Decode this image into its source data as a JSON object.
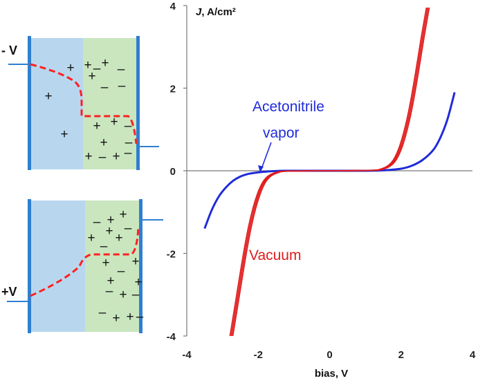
{
  "chart_data": {
    "type": "line",
    "title": "",
    "xlabel": "bias, V",
    "ylabel": "J, A/cm²",
    "xlim": [
      -4,
      4
    ],
    "ylim": [
      -4,
      4
    ],
    "x_ticks": [
      "-4",
      "-2",
      "0",
      "2",
      "4"
    ],
    "y_ticks": [
      "4",
      "2",
      "0",
      "-2",
      "-4"
    ],
    "grid": false,
    "series": [
      {
        "name": "Acetonitrile vapor",
        "color": "#1f2bd9",
        "x": [
          -3.5,
          -3.3,
          -3.1,
          -2.9,
          -2.7,
          -2.5,
          -2.3,
          -2.1,
          -1.9,
          -1.6,
          -1.3,
          -1.0,
          0,
          1.0,
          1.5,
          2.0,
          2.3,
          2.6,
          2.9,
          3.1,
          3.3,
          3.5
        ],
        "y": [
          -1.4,
          -0.95,
          -0.62,
          -0.4,
          -0.24,
          -0.14,
          -0.08,
          -0.05,
          -0.03,
          -0.01,
          0,
          0,
          0,
          0,
          0.01,
          0.05,
          0.12,
          0.26,
          0.5,
          0.8,
          1.25,
          1.9
        ]
      },
      {
        "name": "Vacuum",
        "color": "#e01b1b",
        "x": [
          -2.75,
          -2.6,
          -2.45,
          -2.3,
          -2.15,
          -2.0,
          -1.85,
          -1.7,
          -1.5,
          -1.2,
          0,
          1.2,
          1.5,
          1.7,
          1.85,
          2.0,
          2.15,
          2.3,
          2.45,
          2.6,
          2.75
        ],
        "y": [
          -4.0,
          -3.2,
          -2.4,
          -1.65,
          -1.05,
          -0.6,
          -0.3,
          -0.14,
          -0.05,
          -0.01,
          0,
          0.01,
          0.05,
          0.14,
          0.3,
          0.6,
          1.05,
          1.65,
          2.4,
          3.2,
          3.95
        ]
      }
    ],
    "annotations": [
      {
        "text": "Acetonitrile vapor",
        "lines": [
          "Acetonitrile",
          "vapor"
        ],
        "color": "#1f2bd9",
        "arrow_to": [
          -2.0,
          -0.03
        ]
      },
      {
        "text": "Vacuum",
        "color": "#e01b1b"
      }
    ]
  },
  "diagrams": {
    "top": {
      "bias_label": "- V"
    },
    "bottom": {
      "bias_label": "+V"
    },
    "colors": {
      "left_region": "#b8d7ee",
      "right_region": "#c9e6bf",
      "electrode": "#2f7fd0",
      "potential": "#ff2020"
    },
    "charge_symbol_plus": "+",
    "charge_symbol_minus": "–"
  }
}
